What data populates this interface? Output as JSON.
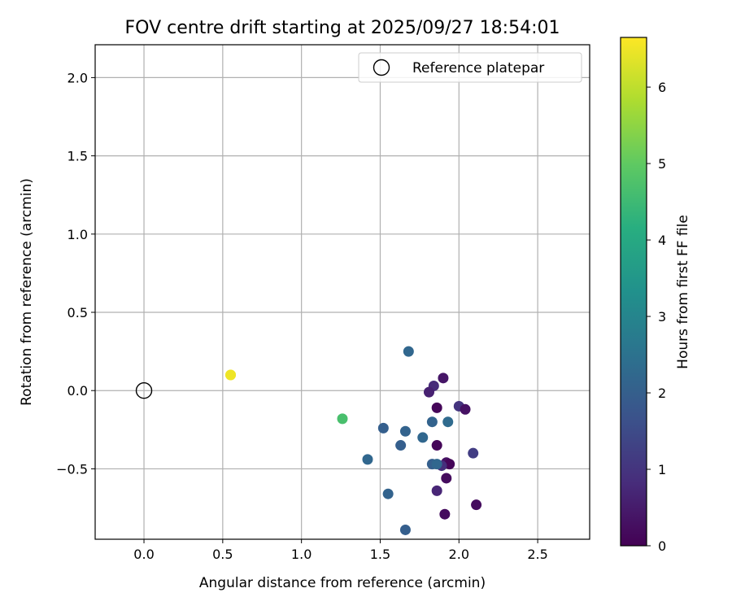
{
  "chart_data": {
    "type": "scatter",
    "title": "FOV centre drift starting at 2025/09/27 18:54:01",
    "xlabel": "Angular distance from reference (arcmin)",
    "ylabel": "Rotation from reference (arcmin)",
    "xlim": [
      -0.31,
      2.83
    ],
    "ylim": [
      -0.95,
      2.21
    ],
    "xticks": [
      0.0,
      0.5,
      1.0,
      1.5,
      2.0,
      2.5
    ],
    "xtick_labels": [
      "0.0",
      "0.5",
      "1.0",
      "1.5",
      "2.0",
      "2.5"
    ],
    "yticks": [
      -0.5,
      0.0,
      0.5,
      1.0,
      1.5,
      2.0
    ],
    "ytick_labels": [
      "−0.5",
      "0.0",
      "0.5",
      "1.0",
      "1.5",
      "2.0"
    ],
    "grid": true,
    "legend": {
      "position": "top-right",
      "entries": [
        "Reference platepar"
      ]
    },
    "reference_point": {
      "x": 0.0,
      "y": 0.0,
      "label": "Reference platepar"
    },
    "colorbar": {
      "label": "Hours from first FF file",
      "colormap": "viridis",
      "range": [
        0,
        6.65
      ],
      "ticks": [
        0,
        1,
        2,
        3,
        4,
        5,
        6
      ],
      "tick_labels": [
        "0",
        "1",
        "2",
        "3",
        "4",
        "5",
        "6"
      ]
    },
    "points": [
      {
        "x": 1.9,
        "y": 0.08,
        "c": 0.4
      },
      {
        "x": 1.84,
        "y": 0.03,
        "c": 0.8
      },
      {
        "x": 1.81,
        "y": -0.01,
        "c": 0.6
      },
      {
        "x": 1.86,
        "y": -0.11,
        "c": 0.1
      },
      {
        "x": 2.0,
        "y": -0.1,
        "c": 1.0
      },
      {
        "x": 2.04,
        "y": -0.12,
        "c": 0.3
      },
      {
        "x": 1.86,
        "y": -0.35,
        "c": 0.1
      },
      {
        "x": 2.09,
        "y": -0.4,
        "c": 1.2
      },
      {
        "x": 1.92,
        "y": -0.46,
        "c": 0.3
      },
      {
        "x": 1.94,
        "y": -0.47,
        "c": 0.1
      },
      {
        "x": 1.89,
        "y": -0.48,
        "c": 0.9
      },
      {
        "x": 1.92,
        "y": -0.56,
        "c": 0.2
      },
      {
        "x": 1.86,
        "y": -0.64,
        "c": 0.7
      },
      {
        "x": 1.91,
        "y": -0.79,
        "c": 0.2
      },
      {
        "x": 2.11,
        "y": -0.73,
        "c": 0.2
      },
      {
        "x": 1.68,
        "y": 0.25,
        "c": 2.2
      },
      {
        "x": 1.83,
        "y": -0.2,
        "c": 2.1
      },
      {
        "x": 1.93,
        "y": -0.2,
        "c": 2.3
      },
      {
        "x": 1.52,
        "y": -0.24,
        "c": 2.0
      },
      {
        "x": 1.66,
        "y": -0.26,
        "c": 2.1
      },
      {
        "x": 1.77,
        "y": -0.3,
        "c": 2.2
      },
      {
        "x": 1.63,
        "y": -0.35,
        "c": 2.0
      },
      {
        "x": 1.42,
        "y": -0.44,
        "c": 2.2
      },
      {
        "x": 1.83,
        "y": -0.47,
        "c": 2.0
      },
      {
        "x": 1.86,
        "y": -0.47,
        "c": 2.2
      },
      {
        "x": 1.55,
        "y": -0.66,
        "c": 2.1
      },
      {
        "x": 1.66,
        "y": -0.89,
        "c": 2.0
      },
      {
        "x": 1.26,
        "y": -0.18,
        "c": 4.7
      },
      {
        "x": 0.55,
        "y": 0.1,
        "c": 6.6
      },
      {
        "x": 0.55,
        "y": 0.1,
        "c": 6.5
      }
    ]
  }
}
